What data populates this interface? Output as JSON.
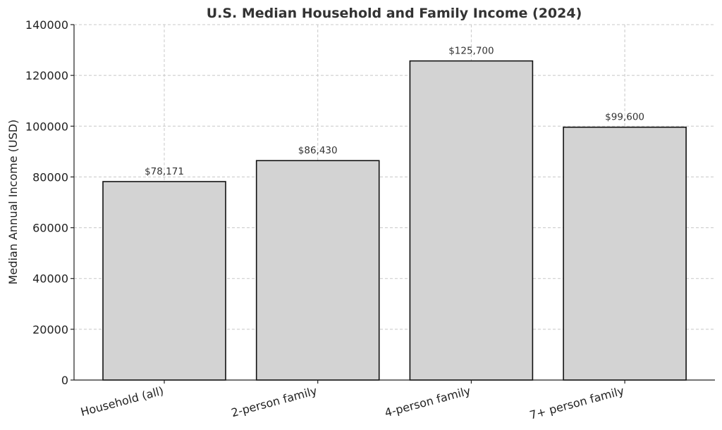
{
  "chart_data": {
    "type": "bar",
    "title": "U.S. Median Household and Family Income (2024)",
    "xlabel": "",
    "ylabel": "Median Annual Income (USD)",
    "categories": [
      "Household (all)",
      "2-person family",
      "4-person family",
      "7+ person family"
    ],
    "values": [
      78171,
      86430,
      125700,
      99600
    ],
    "value_labels": [
      "$78,171",
      "$86,430",
      "$125,700",
      "$99,600"
    ],
    "ylim": [
      0,
      140000
    ],
    "yticks": [
      0,
      20000,
      40000,
      60000,
      80000,
      100000,
      120000,
      140000
    ],
    "ytick_labels": [
      "0",
      "20000",
      "40000",
      "60000",
      "80000",
      "100000",
      "120000",
      "140000"
    ],
    "grid": true,
    "colors": {
      "bar_fill": "#d3d3d3",
      "bar_edge": "#111111"
    }
  }
}
